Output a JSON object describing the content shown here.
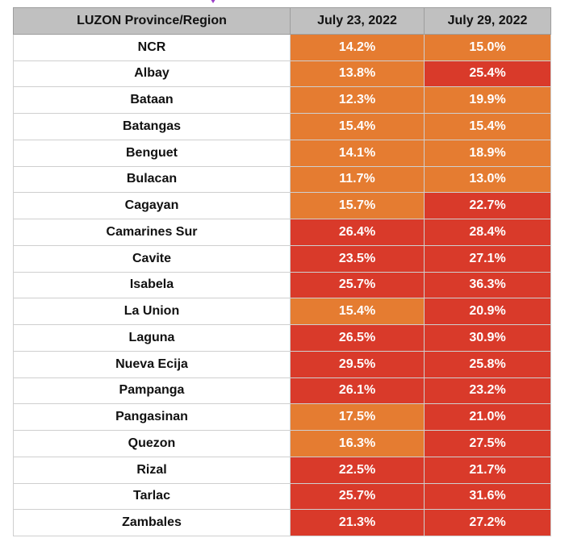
{
  "table": {
    "headers": [
      "LUZON Province/Region",
      "July 23, 2022",
      "July 29, 2022"
    ],
    "colors": {
      "orange": "#e57c31",
      "red": "#d93a2a",
      "header": "#c0c0c0"
    },
    "rows": [
      {
        "name": "NCR",
        "jul23": "14.2%",
        "jul23_level": "orange",
        "jul29": "15.0%",
        "jul29_level": "orange"
      },
      {
        "name": "Albay",
        "jul23": "13.8%",
        "jul23_level": "orange",
        "jul29": "25.4%",
        "jul29_level": "red"
      },
      {
        "name": "Bataan",
        "jul23": "12.3%",
        "jul23_level": "orange",
        "jul29": "19.9%",
        "jul29_level": "orange"
      },
      {
        "name": "Batangas",
        "jul23": "15.4%",
        "jul23_level": "orange",
        "jul29": "15.4%",
        "jul29_level": "orange"
      },
      {
        "name": "Benguet",
        "jul23": "14.1%",
        "jul23_level": "orange",
        "jul29": "18.9%",
        "jul29_level": "orange"
      },
      {
        "name": "Bulacan",
        "jul23": "11.7%",
        "jul23_level": "orange",
        "jul29": "13.0%",
        "jul29_level": "orange"
      },
      {
        "name": "Cagayan",
        "jul23": "15.7%",
        "jul23_level": "orange",
        "jul29": "22.7%",
        "jul29_level": "red"
      },
      {
        "name": "Camarines Sur",
        "jul23": "26.4%",
        "jul23_level": "red",
        "jul29": "28.4%",
        "jul29_level": "red"
      },
      {
        "name": "Cavite",
        "jul23": "23.5%",
        "jul23_level": "red",
        "jul29": "27.1%",
        "jul29_level": "red"
      },
      {
        "name": "Isabela",
        "jul23": "25.7%",
        "jul23_level": "red",
        "jul29": "36.3%",
        "jul29_level": "red"
      },
      {
        "name": "La Union",
        "jul23": "15.4%",
        "jul23_level": "orange",
        "jul29": "20.9%",
        "jul29_level": "red"
      },
      {
        "name": "Laguna",
        "jul23": "26.5%",
        "jul23_level": "red",
        "jul29": "30.9%",
        "jul29_level": "red"
      },
      {
        "name": "Nueva Ecija",
        "jul23": "29.5%",
        "jul23_level": "red",
        "jul29": "25.8%",
        "jul29_level": "red"
      },
      {
        "name": "Pampanga",
        "jul23": "26.1%",
        "jul23_level": "red",
        "jul29": "23.2%",
        "jul29_level": "red"
      },
      {
        "name": "Pangasinan",
        "jul23": "17.5%",
        "jul23_level": "orange",
        "jul29": "21.0%",
        "jul29_level": "red"
      },
      {
        "name": "Quezon",
        "jul23": "16.3%",
        "jul23_level": "orange",
        "jul29": "27.5%",
        "jul29_level": "red"
      },
      {
        "name": "Rizal",
        "jul23": "22.5%",
        "jul23_level": "red",
        "jul29": "21.7%",
        "jul29_level": "red"
      },
      {
        "name": "Tarlac",
        "jul23": "25.7%",
        "jul23_level": "red",
        "jul29": "31.6%",
        "jul29_level": "red"
      },
      {
        "name": "Zambales",
        "jul23": "21.3%",
        "jul23_level": "red",
        "jul29": "27.2%",
        "jul29_level": "red"
      }
    ]
  }
}
